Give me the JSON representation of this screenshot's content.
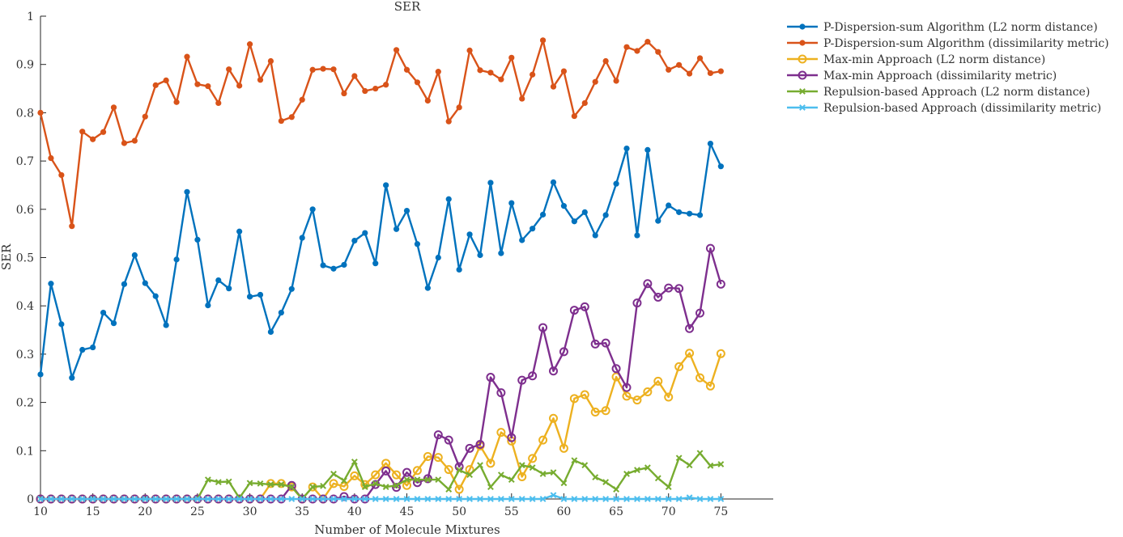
{
  "chart_data": {
    "type": "line",
    "title": "SER",
    "xlabel": "Number of Molecule Mixtures",
    "ylabel": "SER",
    "xlim": [
      10,
      80
    ],
    "ylim": [
      0,
      1
    ],
    "xticks": [
      10,
      15,
      20,
      25,
      30,
      35,
      40,
      45,
      50,
      55,
      60,
      65,
      70,
      75
    ],
    "yticks": [
      0,
      0.1,
      0.2,
      0.3,
      0.4,
      0.5,
      0.6,
      0.7,
      0.8,
      0.9,
      1
    ],
    "xtick_labels": [
      "10",
      "15",
      "20",
      "25",
      "30",
      "35",
      "40",
      "45",
      "50",
      "55",
      "60",
      "65",
      "70",
      "75"
    ],
    "ytick_labels": [
      "0",
      "0.1",
      "0.2",
      "0.3",
      "0.4",
      "0.5",
      "0.6",
      "0.7",
      "0.8",
      "0.9",
      "1"
    ],
    "legend_position": "outside-right-top",
    "grid": false,
    "x": [
      10,
      11,
      12,
      13,
      14,
      15,
      16,
      17,
      18,
      19,
      20,
      21,
      22,
      23,
      24,
      25,
      26,
      27,
      28,
      29,
      30,
      31,
      32,
      33,
      34,
      35,
      36,
      37,
      38,
      39,
      40,
      41,
      42,
      43,
      44,
      45,
      46,
      47,
      48,
      49,
      50,
      51,
      52,
      53,
      54,
      55,
      56,
      57,
      58,
      59,
      60,
      61,
      62,
      63,
      64,
      65,
      66,
      67,
      68,
      69,
      70,
      71,
      72,
      73,
      74,
      75
    ],
    "series": [
      {
        "name": "P-Dispersion-sum Algorithm (L2 norm distance)",
        "color": "#0072BD",
        "marker": "dot",
        "values": [
          0.258,
          0.446,
          0.362,
          0.251,
          0.309,
          0.314,
          0.386,
          0.364,
          0.445,
          0.505,
          0.447,
          0.42,
          0.36,
          0.496,
          0.636,
          0.537,
          0.401,
          0.453,
          0.436,
          0.554,
          0.419,
          0.423,
          0.346,
          0.386,
          0.435,
          0.541,
          0.6,
          0.484,
          0.477,
          0.485,
          0.535,
          0.551,
          0.488,
          0.65,
          0.559,
          0.597,
          0.528,
          0.437,
          0.5,
          0.621,
          0.475,
          0.548,
          0.505,
          0.655,
          0.509,
          0.613,
          0.536,
          0.56,
          0.589,
          0.656,
          0.607,
          0.575,
          0.594,
          0.546,
          0.588,
          0.653,
          0.726,
          0.546,
          0.723,
          0.576,
          0.608,
          0.594,
          0.591,
          0.588,
          0.736,
          0.689
        ]
      },
      {
        "name": "P-Dispersion-sum Algorithm (dissimilarity metric)",
        "color": "#D95319",
        "marker": "dot",
        "values": [
          0.8,
          0.706,
          0.671,
          0.565,
          0.761,
          0.745,
          0.76,
          0.811,
          0.737,
          0.742,
          0.792,
          0.857,
          0.867,
          0.822,
          0.916,
          0.859,
          0.855,
          0.82,
          0.89,
          0.856,
          0.942,
          0.868,
          0.907,
          0.783,
          0.791,
          0.827,
          0.889,
          0.891,
          0.89,
          0.84,
          0.876,
          0.845,
          0.85,
          0.858,
          0.93,
          0.889,
          0.863,
          0.825,
          0.885,
          0.782,
          0.811,
          0.929,
          0.888,
          0.883,
          0.869,
          0.914,
          0.829,
          0.879,
          0.95,
          0.854,
          0.886,
          0.793,
          0.82,
          0.864,
          0.907,
          0.866,
          0.936,
          0.928,
          0.947,
          0.926,
          0.889,
          0.899,
          0.881,
          0.913,
          0.882,
          0.886
        ]
      },
      {
        "name": "Max-min Approach (L2 norm distance)",
        "color": "#EDB120",
        "marker": "circle",
        "values": [
          0,
          0,
          0,
          0,
          0,
          0,
          0,
          0,
          0,
          0,
          0,
          0,
          0,
          0,
          0,
          0,
          0,
          0,
          0,
          0,
          0,
          0,
          0.032,
          0.032,
          0.025,
          0,
          0.025,
          0,
          0.032,
          0.026,
          0.048,
          0.03,
          0.05,
          0.074,
          0.05,
          0.028,
          0.059,
          0.088,
          0.086,
          0.061,
          0.02,
          0.061,
          0.11,
          0.074,
          0.138,
          0.12,
          0.046,
          0.084,
          0.122,
          0.167,
          0.105,
          0.208,
          0.216,
          0.18,
          0.183,
          0.253,
          0.213,
          0.205,
          0.222,
          0.244,
          0.211,
          0.274,
          0.302,
          0.251,
          0.234,
          0.301
        ]
      },
      {
        "name": "Max-min Approach (dissimilarity metric)",
        "color": "#7E2F8E",
        "marker": "circle",
        "values": [
          0,
          0,
          0,
          0,
          0,
          0,
          0,
          0,
          0,
          0,
          0,
          0,
          0,
          0,
          0,
          0,
          0,
          0,
          0,
          0,
          0,
          0,
          0,
          0,
          0.028,
          0,
          0,
          0,
          0,
          0.005,
          0,
          0,
          0.03,
          0.058,
          0.024,
          0.055,
          0.034,
          0.042,
          0.133,
          0.122,
          0.067,
          0.105,
          0.113,
          0.252,
          0.22,
          0.127,
          0.246,
          0.255,
          0.355,
          0.265,
          0.305,
          0.391,
          0.398,
          0.321,
          0.323,
          0.27,
          0.231,
          0.406,
          0.446,
          0.418,
          0.437,
          0.436,
          0.353,
          0.385,
          0.519,
          0.445
        ]
      },
      {
        "name": "Repulsion-based Approach (L2 norm distance)",
        "color": "#77AC30",
        "marker": "x",
        "values": [
          0,
          0,
          0,
          0,
          0,
          0,
          0,
          0,
          0,
          0,
          0,
          0,
          0,
          0,
          0,
          0,
          0.04,
          0.035,
          0.036,
          0.002,
          0.033,
          0.032,
          0.03,
          0.03,
          0.025,
          0.0,
          0.025,
          0.027,
          0.052,
          0.038,
          0.077,
          0.025,
          0.032,
          0.025,
          0.028,
          0.04,
          0.04,
          0.04,
          0.04,
          0.02,
          0.06,
          0.05,
          0.07,
          0.025,
          0.05,
          0.04,
          0.07,
          0.065,
          0.052,
          0.055,
          0.033,
          0.08,
          0.07,
          0.045,
          0.035,
          0.02,
          0.052,
          0.06,
          0.065,
          0.043,
          0.025,
          0.085,
          0.07,
          0.095,
          0.069,
          0.072
        ]
      },
      {
        "name": "Repulsion-based Approach (dissimilarity metric)",
        "color": "#4DBEEE",
        "marker": "x",
        "values": [
          0,
          0,
          0,
          0,
          0,
          0,
          0,
          0,
          0,
          0,
          0,
          0,
          0,
          0,
          0,
          0,
          0,
          0,
          0,
          0,
          0,
          0,
          0,
          0,
          0,
          0,
          0,
          0,
          0,
          0,
          0,
          0,
          0,
          0,
          0,
          0,
          0,
          0,
          0,
          0,
          0,
          0,
          0,
          0,
          0,
          0,
          0,
          0,
          0,
          0.008,
          0,
          0,
          0,
          0,
          0,
          0,
          0,
          0,
          0,
          0,
          0,
          0,
          0.003,
          0,
          0,
          0
        ]
      }
    ]
  }
}
